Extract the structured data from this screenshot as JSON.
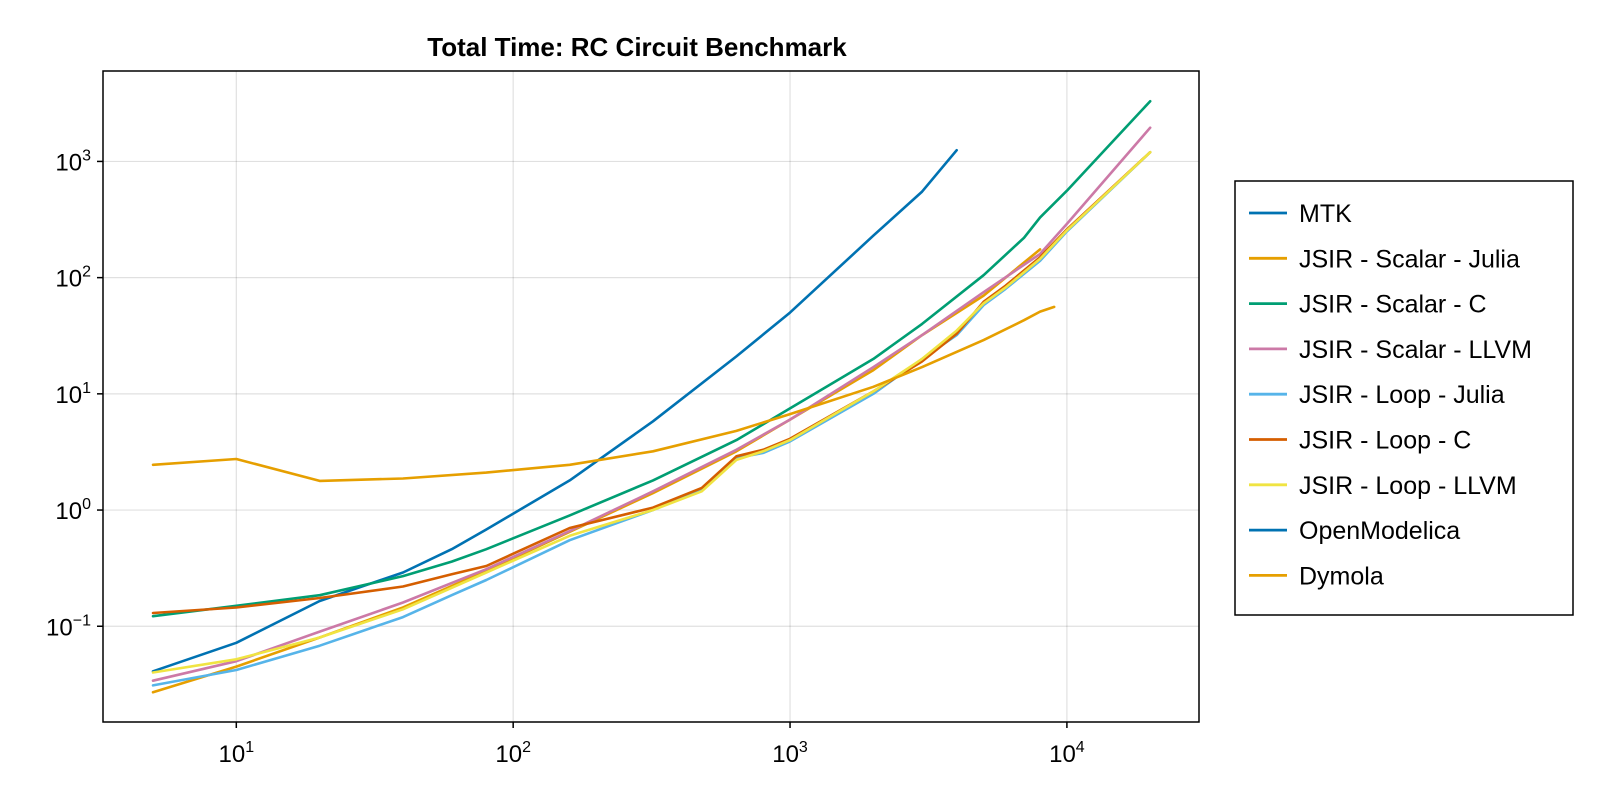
{
  "chart_data": {
    "type": "line",
    "title": "Total Time: RC Circuit Benchmark",
    "xlabel": "",
    "ylabel": "",
    "x_scale": "log",
    "y_scale": "log",
    "xlim": [
      3.3,
      30000
    ],
    "ylim": [
      0.015,
      6000
    ],
    "x_ticks": [
      {
        "value": 10,
        "base": "10",
        "exp": "1"
      },
      {
        "value": 100,
        "base": "10",
        "exp": "2"
      },
      {
        "value": 1000,
        "base": "10",
        "exp": "3"
      },
      {
        "value": 10000,
        "base": "10",
        "exp": "4"
      }
    ],
    "y_ticks": [
      {
        "value": 0.1,
        "base": "10",
        "exp": "−1"
      },
      {
        "value": 1,
        "base": "10",
        "exp": "0"
      },
      {
        "value": 10,
        "base": "10",
        "exp": "1"
      },
      {
        "value": 100,
        "base": "10",
        "exp": "2"
      },
      {
        "value": 1000,
        "base": "10",
        "exp": "3"
      }
    ],
    "grid": true,
    "legend_position": "right",
    "series": [
      {
        "name": "MTK",
        "color": "#0072b2",
        "points": [
          [
            5,
            0.041
          ],
          [
            10,
            0.072
          ],
          [
            20,
            0.165
          ],
          [
            40,
            0.29
          ],
          [
            60,
            0.46
          ],
          [
            80,
            0.68
          ],
          [
            160,
            1.8
          ],
          [
            320,
            5.8
          ],
          [
            640,
            21
          ],
          [
            1000,
            50
          ],
          [
            2000,
            230
          ],
          [
            3000,
            550
          ],
          [
            4000,
            1250
          ]
        ]
      },
      {
        "name": "JSIR - Scalar - Julia",
        "color": "#e69f00",
        "points": [
          [
            5,
            0.027
          ],
          [
            10,
            0.045
          ],
          [
            20,
            0.08
          ],
          [
            40,
            0.145
          ],
          [
            80,
            0.3
          ],
          [
            160,
            0.65
          ],
          [
            320,
            1.4
          ],
          [
            640,
            3.2
          ],
          [
            1000,
            6
          ],
          [
            2000,
            16
          ],
          [
            3000,
            32
          ],
          [
            5000,
            70
          ],
          [
            8000,
            175
          ]
        ]
      },
      {
        "name": "JSIR - Scalar - C",
        "color": "#009e73",
        "points": [
          [
            5,
            0.122
          ],
          [
            10,
            0.15
          ],
          [
            20,
            0.185
          ],
          [
            40,
            0.27
          ],
          [
            60,
            0.36
          ],
          [
            80,
            0.46
          ],
          [
            160,
            0.9
          ],
          [
            320,
            1.8
          ],
          [
            640,
            4
          ],
          [
            1000,
            7.5
          ],
          [
            2000,
            20
          ],
          [
            3000,
            40
          ],
          [
            5000,
            105
          ],
          [
            7000,
            220
          ],
          [
            8000,
            330
          ],
          [
            10000,
            560
          ],
          [
            20000,
            3300
          ]
        ]
      },
      {
        "name": "JSIR - Scalar - LLVM",
        "color": "#cc79a7",
        "points": [
          [
            5,
            0.034
          ],
          [
            10,
            0.05
          ],
          [
            20,
            0.09
          ],
          [
            40,
            0.16
          ],
          [
            80,
            0.31
          ],
          [
            160,
            0.66
          ],
          [
            320,
            1.45
          ],
          [
            640,
            3.3
          ],
          [
            1000,
            6
          ],
          [
            2000,
            17
          ],
          [
            3000,
            32
          ],
          [
            5000,
            75
          ],
          [
            8000,
            160
          ],
          [
            10000,
            290
          ],
          [
            20000,
            1950
          ]
        ]
      },
      {
        "name": "JSIR - Loop - Julia",
        "color": "#56b4e9",
        "points": [
          [
            5,
            0.031
          ],
          [
            10,
            0.042
          ],
          [
            20,
            0.068
          ],
          [
            40,
            0.12
          ],
          [
            60,
            0.185
          ],
          [
            80,
            0.25
          ],
          [
            160,
            0.55
          ],
          [
            320,
            1
          ],
          [
            480,
            1.5
          ],
          [
            640,
            2.8
          ],
          [
            800,
            3.1
          ],
          [
            1000,
            3.9
          ],
          [
            2000,
            10
          ],
          [
            3000,
            20
          ],
          [
            4000,
            32
          ],
          [
            5000,
            58
          ],
          [
            6000,
            80
          ],
          [
            8000,
            140
          ],
          [
            10000,
            250
          ],
          [
            20000,
            1200
          ]
        ]
      },
      {
        "name": "JSIR - Loop - C",
        "color": "#d55e00",
        "points": [
          [
            5,
            0.13
          ],
          [
            10,
            0.145
          ],
          [
            20,
            0.175
          ],
          [
            40,
            0.22
          ],
          [
            60,
            0.28
          ],
          [
            80,
            0.33
          ],
          [
            160,
            0.7
          ],
          [
            320,
            1.05
          ],
          [
            480,
            1.55
          ],
          [
            640,
            2.9
          ],
          [
            800,
            3.3
          ],
          [
            1000,
            4.1
          ],
          [
            2000,
            10.5
          ],
          [
            3000,
            19
          ],
          [
            4000,
            33
          ],
          [
            5000,
            62
          ],
          [
            6000,
            85
          ],
          [
            8000,
            150
          ],
          [
            10000,
            260
          ],
          [
            20000,
            1200
          ]
        ]
      },
      {
        "name": "JSIR - Loop - LLVM",
        "color": "#f0e442",
        "points": [
          [
            5,
            0.04
          ],
          [
            10,
            0.052
          ],
          [
            20,
            0.08
          ],
          [
            40,
            0.14
          ],
          [
            80,
            0.29
          ],
          [
            160,
            0.6
          ],
          [
            320,
            1
          ],
          [
            480,
            1.45
          ],
          [
            640,
            2.7
          ],
          [
            800,
            3.2
          ],
          [
            1000,
            4
          ],
          [
            2000,
            10.5
          ],
          [
            3000,
            20
          ],
          [
            4000,
            35
          ],
          [
            5000,
            60
          ],
          [
            6000,
            82
          ],
          [
            8000,
            145
          ],
          [
            10000,
            255
          ],
          [
            20000,
            1200
          ]
        ]
      },
      {
        "name": "OpenModelica",
        "color": "#0072b2",
        "points": []
      },
      {
        "name": "Dymola",
        "color": "#e69f00",
        "points": [
          [
            5,
            2.45
          ],
          [
            10,
            2.75
          ],
          [
            20,
            1.78
          ],
          [
            40,
            1.87
          ],
          [
            80,
            2.1
          ],
          [
            160,
            2.45
          ],
          [
            320,
            3.2
          ],
          [
            640,
            4.8
          ],
          [
            1000,
            6.7
          ],
          [
            2000,
            11.5
          ],
          [
            3000,
            17
          ],
          [
            5000,
            29
          ],
          [
            7000,
            43
          ],
          [
            8000,
            51
          ],
          [
            9000,
            56
          ]
        ]
      }
    ]
  }
}
